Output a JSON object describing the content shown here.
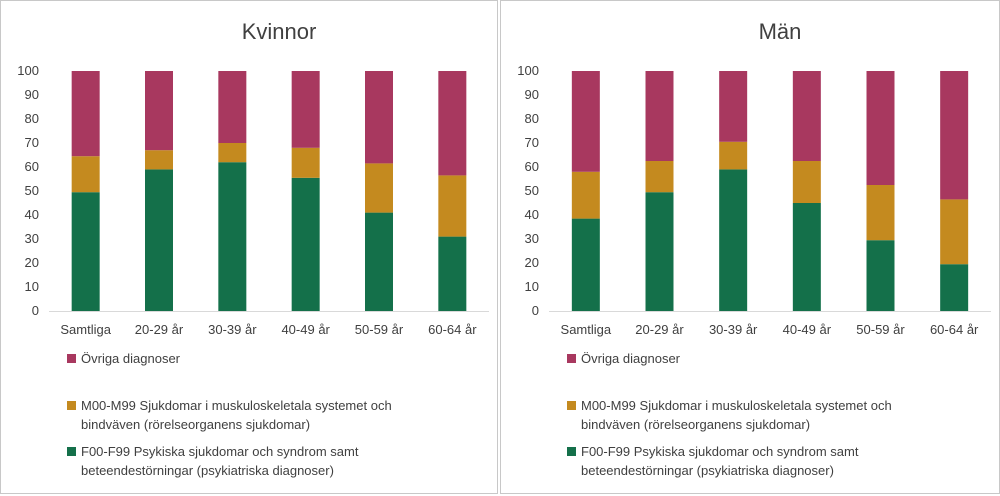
{
  "colors": {
    "ovriga": "#A8385F",
    "muskulo": "#C48A1F",
    "psyk": "#14704A",
    "grid": "#d9d9d9",
    "text": "#404040"
  },
  "chart_data": [
    {
      "type": "bar",
      "stacked": true,
      "title": "Kvinnor",
      "categories": [
        "Samtliga",
        "20-29 år",
        "30-39 år",
        "40-49 år",
        "50-59 år",
        "60-64 år"
      ],
      "ylim": [
        0,
        100
      ],
      "yticks": [
        "0",
        "10",
        "20",
        "30",
        "40",
        "50",
        "60",
        "70",
        "80",
        "90",
        "100"
      ],
      "grid": false,
      "legend_position": "bottom",
      "series": [
        {
          "name": "F00-F99 Psykiska sjukdomar och syndrom samt beteendestörningar (psykiatriska diagnoser)",
          "values": [
            49.5,
            59,
            62,
            55.5,
            41,
            31
          ]
        },
        {
          "name": "M00-M99 Sjukdomar i muskuloskeletala systemet och bindväven (rörelseorganens sjukdomar)",
          "values": [
            15,
            8,
            8,
            12.5,
            20.5,
            25.5
          ]
        },
        {
          "name": "Övriga diagnoser",
          "values": [
            35.5,
            33,
            30,
            32,
            38.5,
            43.5
          ]
        }
      ]
    },
    {
      "type": "bar",
      "stacked": true,
      "title": "Män",
      "categories": [
        "Samtliga",
        "20-29 år",
        "30-39 år",
        "40-49 år",
        "50-59 år",
        "60-64 år"
      ],
      "ylim": [
        0,
        100
      ],
      "yticks": [
        "0",
        "10",
        "20",
        "30",
        "40",
        "50",
        "60",
        "70",
        "80",
        "90",
        "100"
      ],
      "grid": false,
      "legend_position": "bottom",
      "series": [
        {
          "name": "F00-F99 Psykiska sjukdomar och syndrom samt beteendestörningar (psykiatriska diagnoser)",
          "values": [
            38.5,
            49.5,
            59,
            45,
            29.5,
            19.5
          ]
        },
        {
          "name": "M00-M99 Sjukdomar i muskuloskeletala systemet och bindväven (rörelseorganens sjukdomar)",
          "values": [
            19.5,
            13,
            11.5,
            17.5,
            23,
            27
          ]
        },
        {
          "name": "Övriga diagnoser",
          "values": [
            42,
            37.5,
            29.5,
            37.5,
            47.5,
            53.5
          ]
        }
      ]
    }
  ],
  "legend_lines": [
    {
      "key": "ovriga",
      "lines": [
        "Övriga diagnoser"
      ]
    },
    {
      "key": "muskulo",
      "lines": [
        "M00-M99 Sjukdomar i muskuloskeletala systemet och",
        "bindväven (rörelseorganens sjukdomar)"
      ]
    },
    {
      "key": "psyk",
      "lines": [
        "F00-F99 Psykiska sjukdomar och syndrom samt",
        "beteendestörningar (psykiatriska diagnoser)"
      ]
    }
  ]
}
